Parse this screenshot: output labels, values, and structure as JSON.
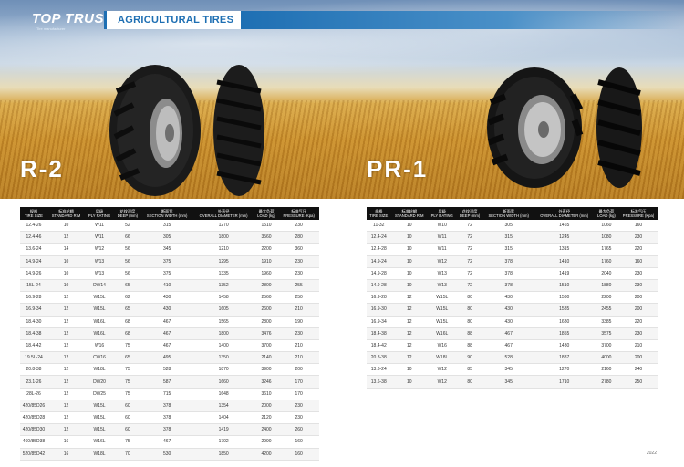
{
  "header": {
    "brand": "TOP TRUST",
    "brand_tagline": "Tire manufacturer",
    "category": "AGRICULTURAL TIRES"
  },
  "left": {
    "model": "R-2",
    "headers": [
      {
        "zh": "规格",
        "en": "TIRE SIZE"
      },
      {
        "zh": "标准轮辋",
        "en": "STANDARD RIM"
      },
      {
        "zh": "层级",
        "en": "PLY RATING"
      },
      {
        "zh": "花纹深度",
        "en": "DEEP (mm)"
      },
      {
        "zh": "断面宽",
        "en": "SECTION WIDTH (mm)"
      },
      {
        "zh": "外直径",
        "en": "OVERALL DIAMETER (mm)"
      },
      {
        "zh": "最大负荷",
        "en": "LOAD (kg)"
      },
      {
        "zh": "标准气压",
        "en": "PRESSURE (Kpa)"
      }
    ],
    "rows": [
      [
        "12.4-26",
        "10",
        "W11",
        "52",
        "315",
        "1270",
        "1510",
        "230"
      ],
      [
        "12.4-46",
        "12",
        "W11",
        "66",
        "305",
        "1800",
        "3560",
        "280"
      ],
      [
        "13.6-24",
        "14",
        "W12",
        "56",
        "345",
        "1210",
        "2200",
        "360"
      ],
      [
        "14.9-24",
        "10",
        "W13",
        "56",
        "375",
        "1295",
        "1910",
        "230"
      ],
      [
        "14.9-26",
        "10",
        "W13",
        "56",
        "375",
        "1335",
        "1960",
        "230"
      ],
      [
        "15L-24",
        "10",
        "DW14",
        "65",
        "410",
        "1352",
        "2800",
        "255"
      ],
      [
        "16.9-28",
        "12",
        "W15L",
        "62",
        "430",
        "1458",
        "2560",
        "250"
      ],
      [
        "16.9-34",
        "12",
        "W15L",
        "65",
        "430",
        "1605",
        "2600",
        "210"
      ],
      [
        "18.4-30",
        "12",
        "W16L",
        "68",
        "467",
        "1565",
        "2800",
        "190"
      ],
      [
        "18.4-38",
        "12",
        "W16L",
        "68",
        "467",
        "1800",
        "3476",
        "230"
      ],
      [
        "18.4-42",
        "12",
        "W16",
        "75",
        "467",
        "1400",
        "3700",
        "210"
      ],
      [
        "19.5L-24",
        "12",
        "CW16",
        "65",
        "495",
        "1350",
        "2140",
        "210"
      ],
      [
        "20.8-38",
        "12",
        "W18L",
        "75",
        "528",
        "1870",
        "3900",
        "200"
      ],
      [
        "23.1-26",
        "12",
        "DW20",
        "75",
        "587",
        "1660",
        "3246",
        "170"
      ],
      [
        "28L-26",
        "12",
        "DW25",
        "75",
        "715",
        "1648",
        "3610",
        "170"
      ],
      [
        "420/85D26",
        "12",
        "W15L",
        "60",
        "378",
        "1354",
        "2000",
        "230"
      ],
      [
        "420/85D28",
        "12",
        "W15L",
        "60",
        "378",
        "1404",
        "2120",
        "230"
      ],
      [
        "420/85D30",
        "12",
        "W15L",
        "60",
        "378",
        "1419",
        "2400",
        "260"
      ],
      [
        "460/85D38",
        "16",
        "W16L",
        "75",
        "467",
        "1702",
        "2990",
        "160"
      ],
      [
        "520/85D42",
        "16",
        "W18L",
        "70",
        "530",
        "1850",
        "4200",
        "160"
      ]
    ]
  },
  "right": {
    "model": "PR-1",
    "headers": [
      {
        "zh": "规格",
        "en": "TIRE SIZE"
      },
      {
        "zh": "标准轮辋",
        "en": "STANDARD RIM"
      },
      {
        "zh": "层级",
        "en": "PLY RATING"
      },
      {
        "zh": "花纹深度",
        "en": "DEEP (mm)"
      },
      {
        "zh": "断面宽",
        "en": "SECTION WIDTH (mm)"
      },
      {
        "zh": "外直径",
        "en": "OVERALL DIAMETER (mm)"
      },
      {
        "zh": "最大负荷",
        "en": "LOAD (kg)"
      },
      {
        "zh": "标准气压",
        "en": "PRESSURE (Kpa)"
      }
    ],
    "rows": [
      [
        "11-32",
        "10",
        "W10",
        "72",
        "305",
        "1465",
        "1060",
        "160"
      ],
      [
        "12.4-24",
        "10",
        "W11",
        "72",
        "315",
        "1245",
        "1080",
        "230"
      ],
      [
        "12.4-28",
        "10",
        "W11",
        "72",
        "315",
        "1315",
        "1765",
        "220"
      ],
      [
        "14.9-24",
        "10",
        "W12",
        "72",
        "378",
        "1410",
        "1760",
        "160"
      ],
      [
        "14.9-28",
        "10",
        "W13",
        "72",
        "378",
        "1419",
        "2040",
        "230"
      ],
      [
        "14.9-28",
        "10",
        "W13",
        "72",
        "378",
        "1510",
        "1880",
        "230"
      ],
      [
        "16.9-28",
        "12",
        "W15L",
        "80",
        "430",
        "1530",
        "2200",
        "200"
      ],
      [
        "16.9-30",
        "12",
        "W15L",
        "80",
        "430",
        "1585",
        "2455",
        "200"
      ],
      [
        "16.9-34",
        "12",
        "W15L",
        "80",
        "430",
        "1680",
        "3385",
        "220"
      ],
      [
        "18.4-38",
        "12",
        "W16L",
        "88",
        "467",
        "1855",
        "3575",
        "230"
      ],
      [
        "18.4-42",
        "12",
        "W16",
        "88",
        "467",
        "1430",
        "3700",
        "210"
      ],
      [
        "20.8-38",
        "12",
        "W18L",
        "90",
        "528",
        "1887",
        "4000",
        "200"
      ],
      [
        "13.6-24",
        "10",
        "W12",
        "85",
        "345",
        "1270",
        "2160",
        "240"
      ],
      [
        "13.6-38",
        "10",
        "W12",
        "80",
        "345",
        "1710",
        "2780",
        "250"
      ]
    ]
  },
  "footer": {
    "page": "2022"
  },
  "colors": {
    "accent": "#1e6fb3",
    "header_bg": "#111111"
  }
}
